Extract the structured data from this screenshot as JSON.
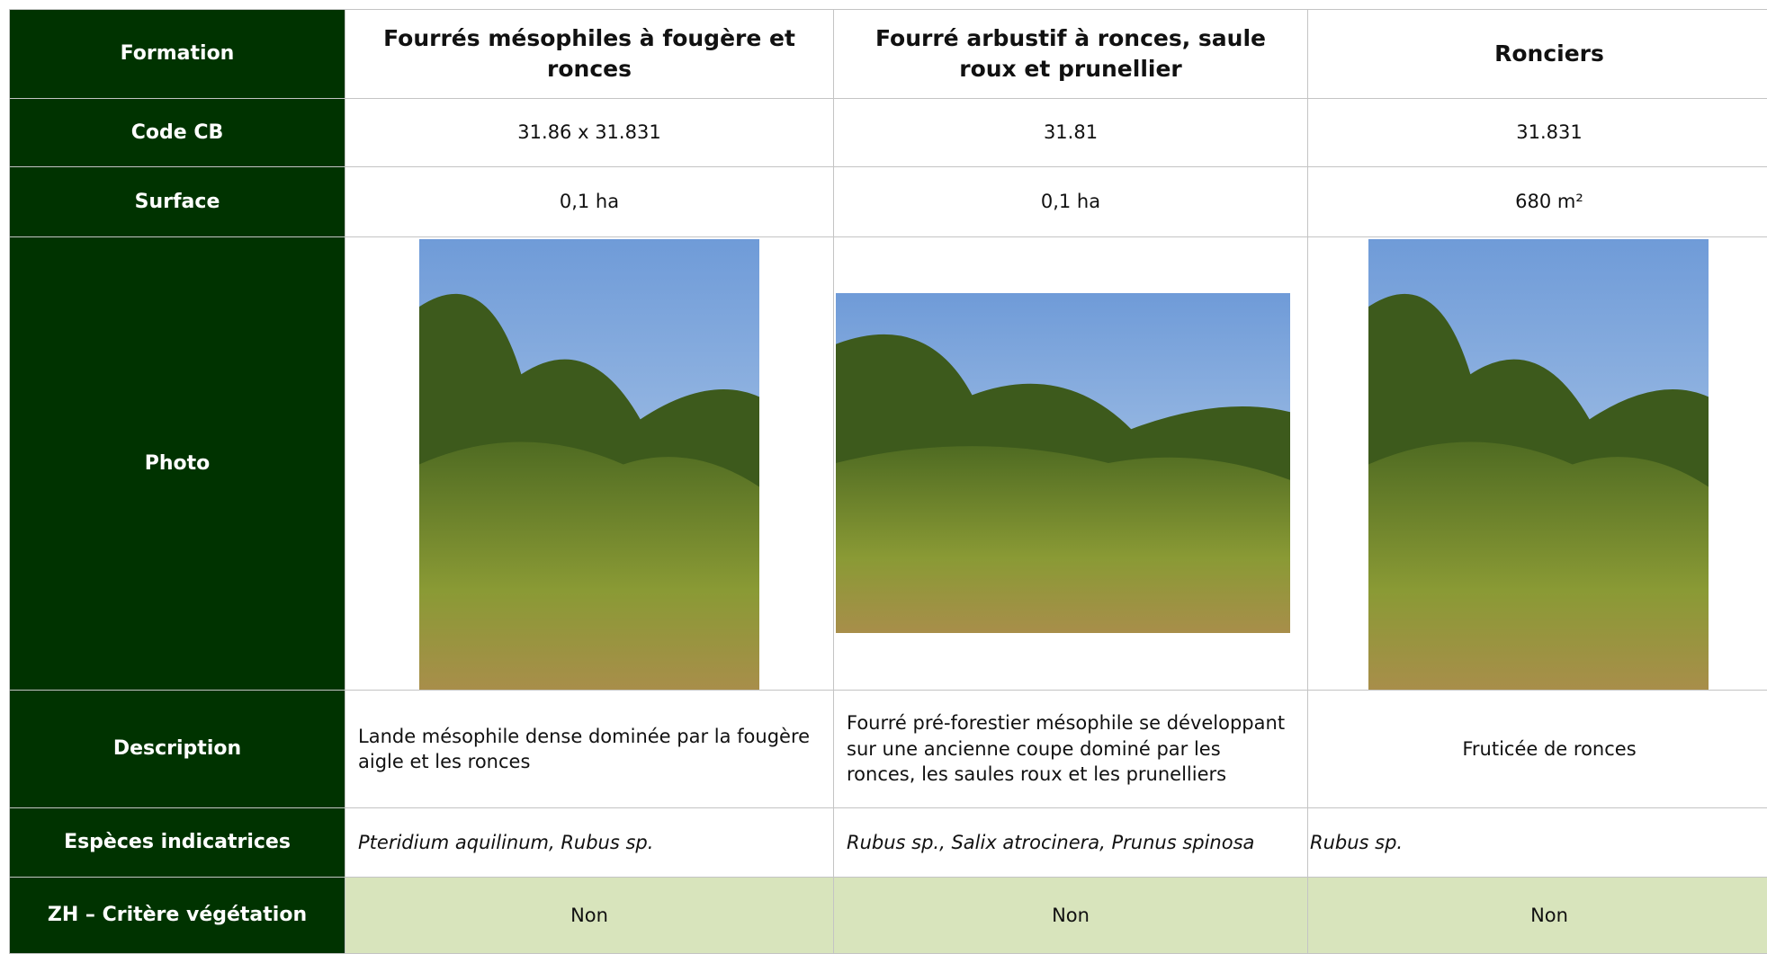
{
  "table": {
    "header": [
      "Formation",
      "Fourrés mésophiles à fougère et ronces",
      "Fourré arbustif à ronces, saule roux et prunellier",
      "Ronciers"
    ],
    "rows": [
      {
        "label": "Code CB",
        "cells": [
          "31.86 x 31.831",
          "31.81",
          "31.831"
        ]
      },
      {
        "label": "Surface",
        "cells": [
          "0,1 ha",
          "0,1 ha",
          "680 m²"
        ]
      },
      {
        "label": "Photo"
      },
      {
        "label": "Description",
        "cells": [
          "Lande mésophile dense dominée par la fougère aigle et les ronces",
          "Fourré pré-forestier mésophile se développant sur une ancienne coupe dominé par les ronces, les saules roux et les prunelliers",
          "Fruticée de ronces"
        ]
      },
      {
        "label": "Espèces indicatrices",
        "cells": [
          "Pteridium aquilinum, Rubus sp.",
          "Rubus sp., Salix atrocinera, Prunus spinosa",
          "Rubus sp."
        ]
      },
      {
        "label": "ZH – Critère végétation",
        "cells": [
          "Non",
          "Non",
          "Non"
        ]
      }
    ]
  }
}
